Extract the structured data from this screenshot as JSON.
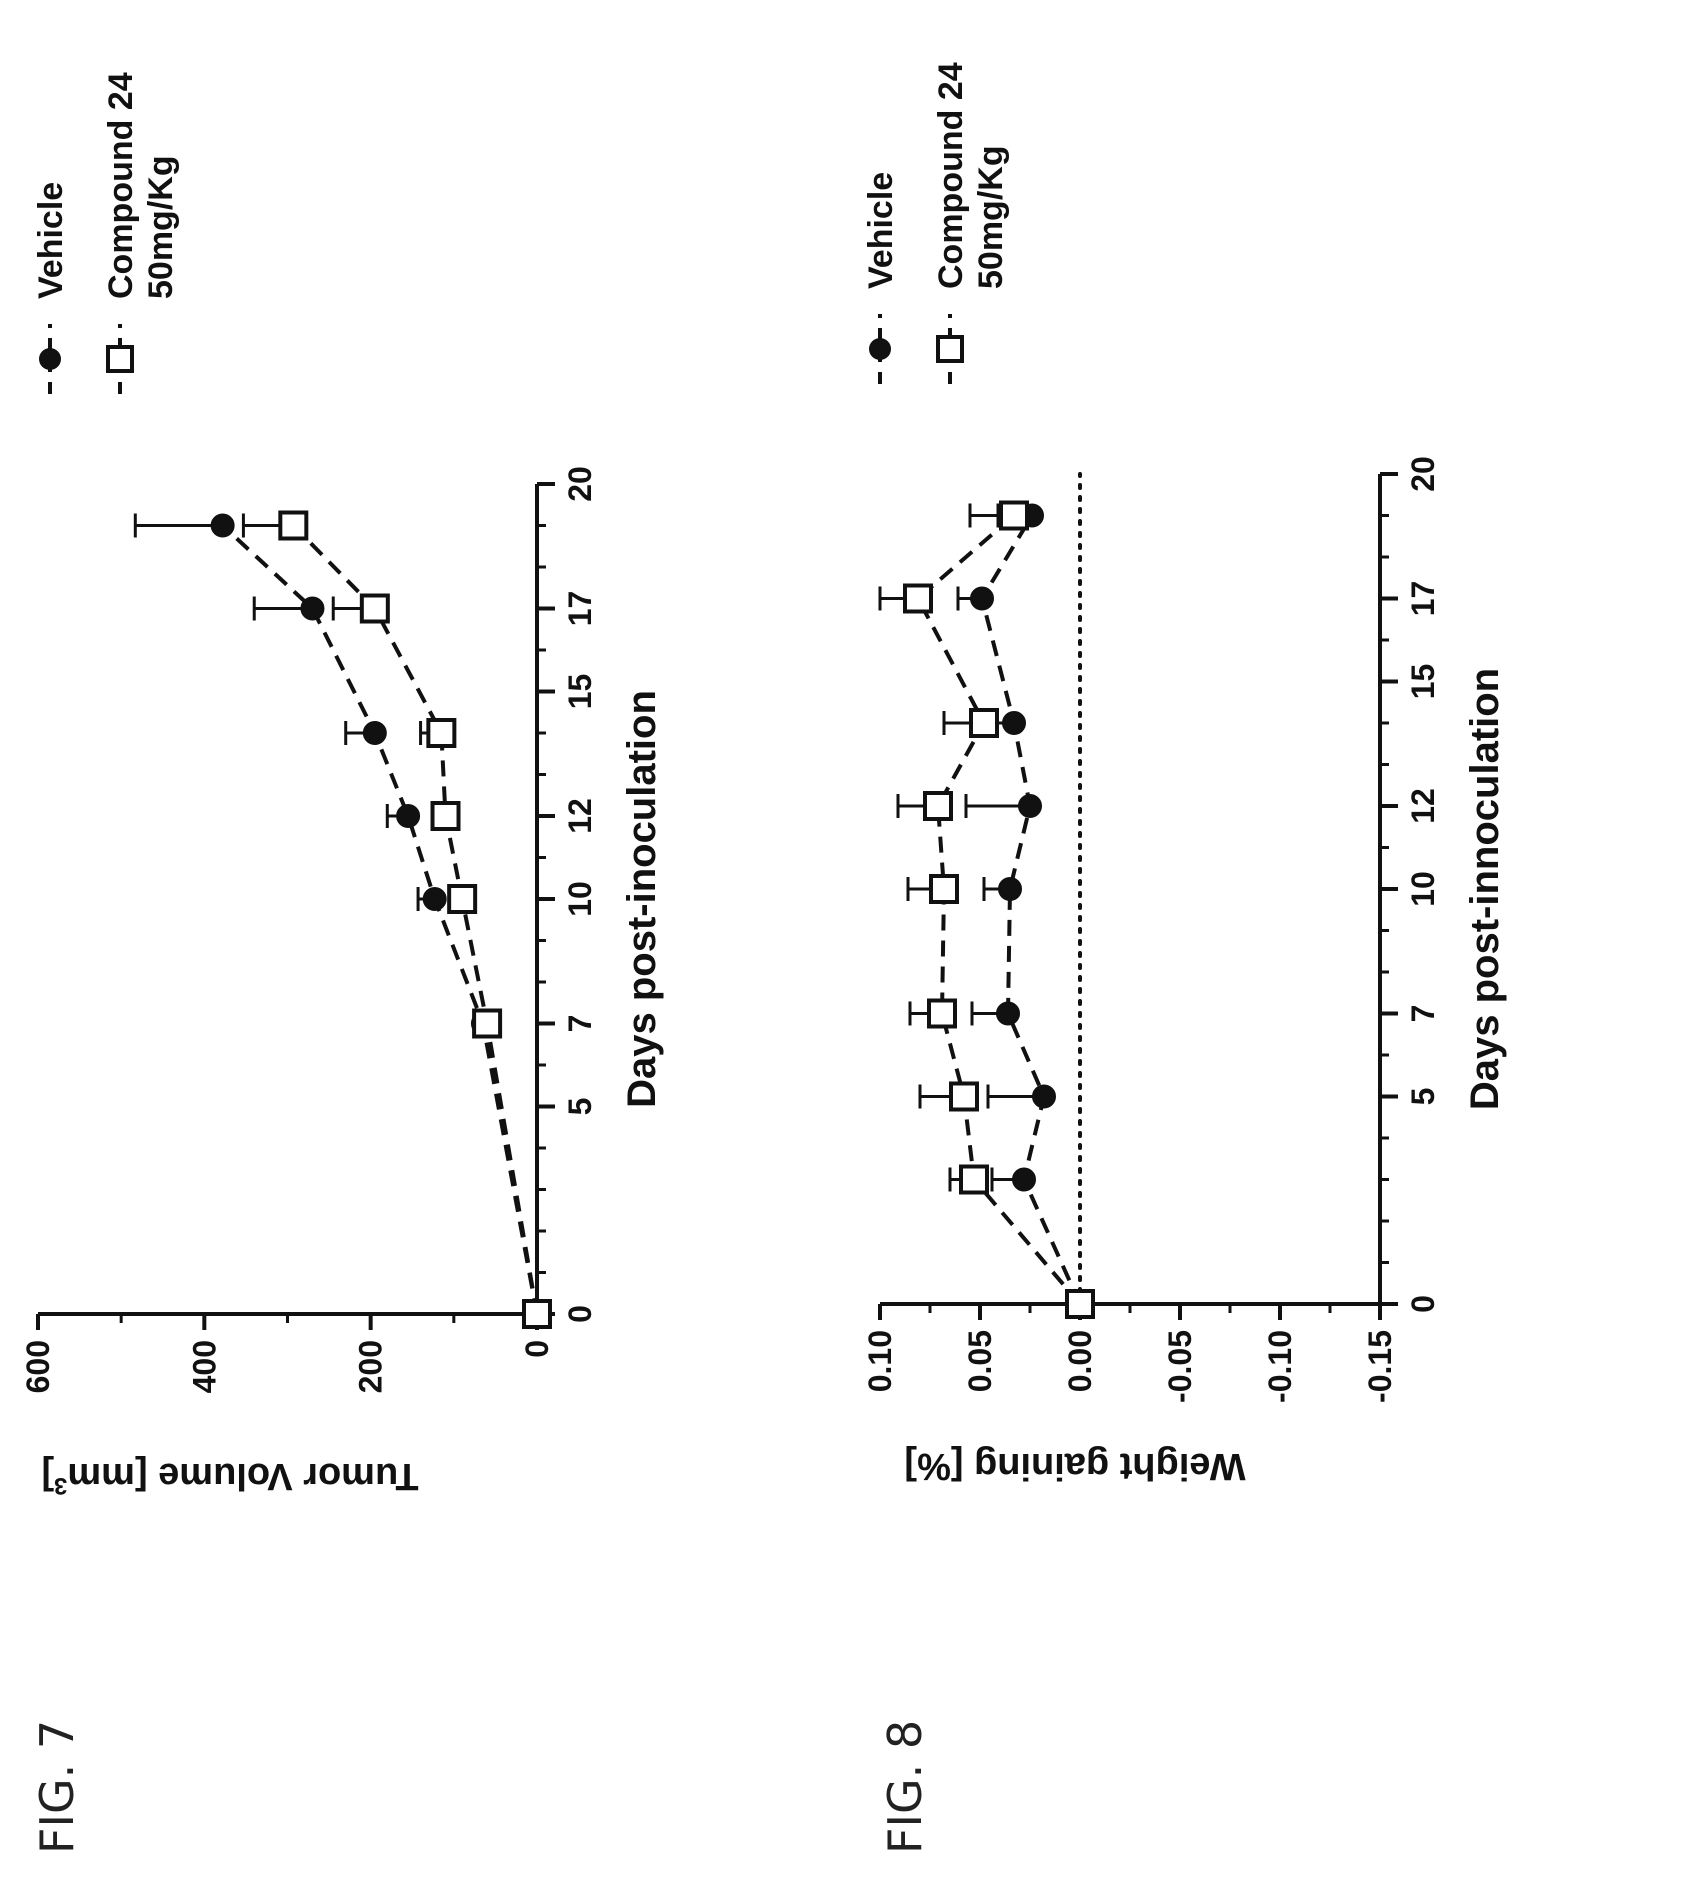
{
  "figures": [
    {
      "label": "FIG. 7"
    },
    {
      "label": "FIG. 8"
    }
  ],
  "chart_data": [
    {
      "type": "line",
      "figure": "FIG. 7",
      "title": "",
      "xlabel": "Days post-inoculation",
      "ylabel": "Tumor Volume [mm",
      "ylabel_sup": "3",
      "ylabel_close": "]",
      "xlim": [
        0,
        20
      ],
      "ylim": [
        0,
        600
      ],
      "x_ticks": [
        0,
        5,
        7,
        10,
        12,
        15,
        17,
        20
      ],
      "y_ticks": [
        0,
        200,
        400,
        600
      ],
      "x_tick_labels": [
        "0",
        "5",
        "7",
        "10",
        "12",
        "15",
        "17",
        "20"
      ],
      "y_tick_labels": [
        "0",
        "200",
        "400",
        "600"
      ],
      "legend_position": "right",
      "zero_line": false,
      "series": [
        {
          "name": "Vehicle",
          "marker": "filled-circle",
          "x": [
            0,
            7,
            10,
            12,
            14,
            17,
            19
          ],
          "y": [
            0,
            65,
            123,
            155,
            195,
            270,
            378
          ],
          "err": [
            0,
            5,
            20,
            25,
            35,
            70,
            105
          ]
        },
        {
          "name": "Compound 24 50mg/Kg",
          "marker": "open-square",
          "x": [
            0,
            7,
            10,
            12,
            14,
            17,
            19
          ],
          "y": [
            0,
            60,
            90,
            110,
            115,
            195,
            293
          ],
          "err": [
            0,
            5,
            10,
            15,
            25,
            50,
            60
          ]
        }
      ]
    },
    {
      "type": "line",
      "figure": "FIG. 8",
      "title": "",
      "xlabel": "Days post-innoculation",
      "ylabel": "Weight gaining [%]",
      "xlim": [
        0,
        20
      ],
      "ylim": [
        -0.15,
        0.1
      ],
      "x_ticks": [
        0,
        5,
        7,
        10,
        12,
        15,
        17,
        20
      ],
      "y_ticks": [
        -0.15,
        -0.1,
        -0.05,
        0.0,
        0.05,
        0.1
      ],
      "x_tick_labels": [
        "0",
        "5",
        "7",
        "10",
        "12",
        "15",
        "17",
        "20"
      ],
      "y_tick_labels": [
        "-0.15",
        "-0.10",
        "-0.05",
        "0.00",
        "0.05",
        "0.10"
      ],
      "legend_position": "right",
      "zero_line": true,
      "series": [
        {
          "name": "Vehicle",
          "marker": "filled-circle",
          "x": [
            0,
            3,
            5,
            7,
            10,
            12,
            14,
            17,
            19
          ],
          "y": [
            0.0,
            0.028,
            0.018,
            0.036,
            0.035,
            0.025,
            0.033,
            0.049,
            0.024
          ],
          "err": [
            0,
            0.016,
            0.028,
            0.018,
            0.013,
            0.032,
            0.012,
            0.012,
            0.017
          ]
        },
        {
          "name": "Compound 24 50mg/Kg",
          "marker": "open-square",
          "x": [
            0,
            3,
            5,
            7,
            10,
            12,
            14,
            17,
            19
          ],
          "y": [
            0.0,
            0.053,
            0.058,
            0.069,
            0.068,
            0.071,
            0.048,
            0.081,
            0.033
          ],
          "err": [
            0,
            0.012,
            0.022,
            0.016,
            0.018,
            0.02,
            0.02,
            0.019,
            0.022
          ]
        }
      ]
    }
  ]
}
